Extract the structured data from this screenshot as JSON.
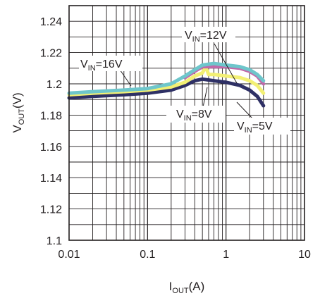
{
  "chart_data": {
    "type": "line",
    "title": "",
    "xlabel": {
      "main": "I",
      "sub": "OUT",
      "tail": "(A)"
    },
    "ylabel": {
      "main": "V",
      "sub": "OUT",
      "tail": "(V)"
    },
    "xscale": "log",
    "xlim": [
      0.01,
      10
    ],
    "ylim": [
      1.1,
      1.25
    ],
    "xticks": [
      0.01,
      0.1,
      1,
      10
    ],
    "xtick_labels": [
      "0.01",
      "0.1",
      "1",
      "10"
    ],
    "yticks": [
      1.1,
      1.12,
      1.14,
      1.16,
      1.18,
      1.2,
      1.22,
      1.24
    ],
    "ytick_labels": [
      "1.1",
      "1.12",
      "1.14",
      "1.16",
      "1.18",
      "1.2",
      "1.22",
      "1.24"
    ],
    "grid": true,
    "series": [
      {
        "name": "VIN=5V",
        "label": {
          "main": "V",
          "sub": "IN",
          "tail": "=5V"
        },
        "color": "#2e3065",
        "x": [
          0.01,
          0.02,
          0.05,
          0.1,
          0.2,
          0.3,
          0.4,
          0.5,
          0.7,
          1,
          1.5,
          2,
          2.5,
          3
        ],
        "y": [
          1.191,
          1.192,
          1.193,
          1.194,
          1.196,
          1.199,
          1.202,
          1.203,
          1.202,
          1.201,
          1.199,
          1.196,
          1.192,
          1.186
        ]
      },
      {
        "name": "VIN=8V",
        "label": {
          "main": "V",
          "sub": "IN",
          "tail": "=8V"
        },
        "color": "#f3f074",
        "x": [
          0.01,
          0.02,
          0.05,
          0.1,
          0.2,
          0.3,
          0.4,
          0.5,
          0.55,
          0.6,
          0.7,
          1,
          1.5,
          2,
          2.5,
          3
        ],
        "y": [
          1.193,
          1.194,
          1.195,
          1.196,
          1.198,
          1.201,
          1.205,
          1.207,
          1.211,
          1.206,
          1.206,
          1.205,
          1.204,
          1.202,
          1.199,
          1.194
        ]
      },
      {
        "name": "VIN=12V",
        "label": {
          "main": "V",
          "sub": "IN",
          "tail": "=12V"
        },
        "color": "#c06aa9",
        "x": [
          0.3,
          0.4,
          0.5,
          0.7,
          1,
          1.5,
          2,
          2.5,
          3
        ],
        "y": [
          1.204,
          1.208,
          1.211,
          1.211,
          1.211,
          1.21,
          1.208,
          1.205,
          1.2
        ]
      },
      {
        "name": "VIN=16V",
        "label": {
          "main": "V",
          "sub": "IN",
          "tail": "=16V"
        },
        "color": "#6ec6cb",
        "x": [
          0.01,
          0.02,
          0.05,
          0.1,
          0.2,
          0.3,
          0.4,
          0.5,
          0.7,
          1,
          1.5,
          2,
          2.5,
          3
        ],
        "y": [
          1.194,
          1.195,
          1.196,
          1.197,
          1.2,
          1.205,
          1.209,
          1.212,
          1.213,
          1.212,
          1.211,
          1.209,
          1.206,
          1.202
        ]
      }
    ]
  }
}
